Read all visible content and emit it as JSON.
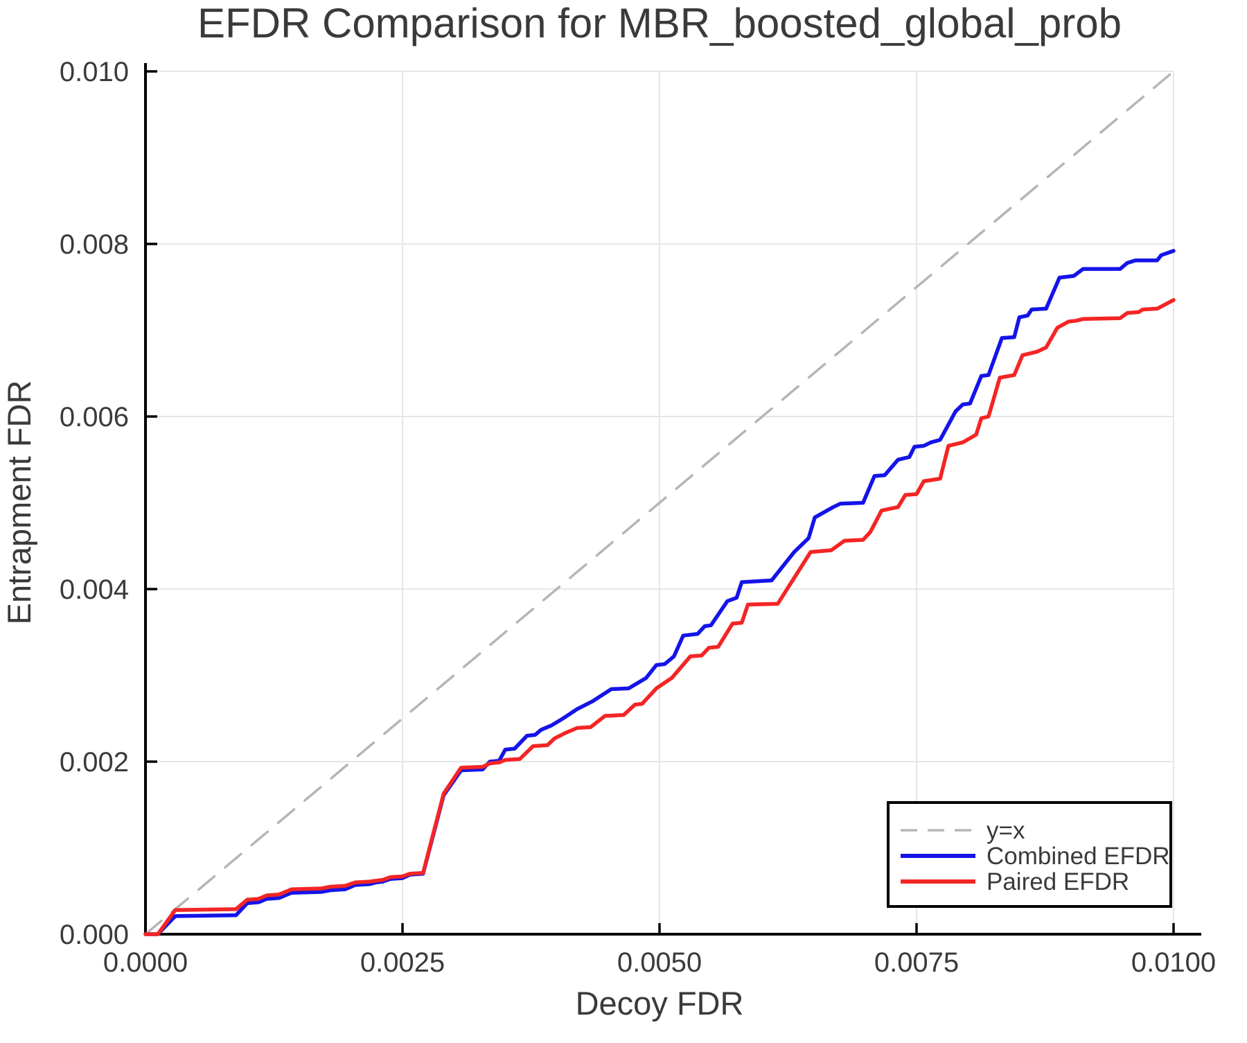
{
  "colors": {
    "background": "#ffffff",
    "text": "#3a3a3a",
    "spine": "#000000",
    "grid": "#e6e6e6",
    "identity": "#b5b5b5",
    "combined": "#1414e8",
    "paired": "#f42525",
    "legend_border": "#000000",
    "legend_fill": "#ffffff"
  },
  "chart_data": {
    "type": "line",
    "title": "EFDR Comparison for MBR_boosted_global_prob",
    "xlabel": "Decoy FDR",
    "ylabel": "Entrapment FDR",
    "xlim": [
      0.0,
      0.01
    ],
    "ylim": [
      0.0,
      0.01
    ],
    "grid": true,
    "legend_position": "lower right",
    "x_ticks": [
      {
        "v": 0.0,
        "label": "0.0000"
      },
      {
        "v": 0.0025,
        "label": "0.0025"
      },
      {
        "v": 0.005,
        "label": "0.0050"
      },
      {
        "v": 0.0075,
        "label": "0.0075"
      },
      {
        "v": 0.01,
        "label": "0.0100"
      }
    ],
    "y_ticks": [
      {
        "v": 0.0,
        "label": "0.000"
      },
      {
        "v": 0.002,
        "label": "0.002"
      },
      {
        "v": 0.004,
        "label": "0.004"
      },
      {
        "v": 0.006,
        "label": "0.006"
      },
      {
        "v": 0.008,
        "label": "0.008"
      },
      {
        "v": 0.01,
        "label": "0.010"
      }
    ],
    "series": [
      {
        "name": "y=x",
        "style": "dashed",
        "color_key": "identity",
        "points": [
          [
            0.0,
            0.0
          ],
          [
            0.01,
            0.01
          ]
        ]
      },
      {
        "name": "Combined EFDR",
        "style": "solid",
        "color_key": "combined",
        "points": [
          [
            0.0,
            0.0
          ],
          [
            0.00012,
            0.0
          ],
          [
            0.00029,
            0.00021
          ],
          [
            0.00088,
            0.00022
          ],
          [
            0.00099,
            0.00036
          ],
          [
            0.0011,
            0.00037
          ],
          [
            0.00118,
            0.00041
          ],
          [
            0.0013,
            0.00042
          ],
          [
            0.00142,
            0.00048
          ],
          [
            0.00171,
            0.00049
          ],
          [
            0.0018,
            0.00051
          ],
          [
            0.00194,
            0.00052
          ],
          [
            0.00204,
            0.00057
          ],
          [
            0.00218,
            0.00058
          ],
          [
            0.00224,
            0.0006
          ],
          [
            0.00231,
            0.00061
          ],
          [
            0.00238,
            0.00064
          ],
          [
            0.0025,
            0.00065
          ],
          [
            0.00257,
            0.00069
          ],
          [
            0.0027,
            0.0007
          ],
          [
            0.0029,
            0.00161
          ],
          [
            0.00307,
            0.0019
          ],
          [
            0.00328,
            0.00191
          ],
          [
            0.00335,
            0.002
          ],
          [
            0.00344,
            0.00201
          ],
          [
            0.0035,
            0.00214
          ],
          [
            0.00359,
            0.00215
          ],
          [
            0.00371,
            0.0023
          ],
          [
            0.00379,
            0.00231
          ],
          [
            0.00385,
            0.00237
          ],
          [
            0.00395,
            0.00242
          ],
          [
            0.00406,
            0.0025
          ],
          [
            0.0042,
            0.00261
          ],
          [
            0.00435,
            0.0027
          ],
          [
            0.00453,
            0.00284
          ],
          [
            0.0047,
            0.00285
          ],
          [
            0.00487,
            0.00297
          ],
          [
            0.00497,
            0.00312
          ],
          [
            0.00505,
            0.00313
          ],
          [
            0.00514,
            0.00322
          ],
          [
            0.00523,
            0.00346
          ],
          [
            0.00537,
            0.00348
          ],
          [
            0.00544,
            0.00357
          ],
          [
            0.0055,
            0.00358
          ],
          [
            0.00566,
            0.00386
          ],
          [
            0.00575,
            0.0039
          ],
          [
            0.0058,
            0.00408
          ],
          [
            0.00609,
            0.0041
          ],
          [
            0.00631,
            0.00443
          ],
          [
            0.00645,
            0.00459
          ],
          [
            0.00651,
            0.00483
          ],
          [
            0.00669,
            0.00495
          ],
          [
            0.00676,
            0.00499
          ],
          [
            0.00698,
            0.005
          ],
          [
            0.00709,
            0.00531
          ],
          [
            0.00719,
            0.00532
          ],
          [
            0.00732,
            0.0055
          ],
          [
            0.00743,
            0.00553
          ],
          [
            0.00748,
            0.00565
          ],
          [
            0.00757,
            0.00566
          ],
          [
            0.00764,
            0.0057
          ],
          [
            0.00773,
            0.00573
          ],
          [
            0.00788,
            0.00606
          ],
          [
            0.00795,
            0.00614
          ],
          [
            0.00802,
            0.00615
          ],
          [
            0.00813,
            0.00647
          ],
          [
            0.0082,
            0.00648
          ],
          [
            0.00833,
            0.00691
          ],
          [
            0.00845,
            0.00692
          ],
          [
            0.0085,
            0.00715
          ],
          [
            0.00858,
            0.00717
          ],
          [
            0.00862,
            0.00724
          ],
          [
            0.00876,
            0.00725
          ],
          [
            0.00889,
            0.00761
          ],
          [
            0.00903,
            0.00763
          ],
          [
            0.00912,
            0.00771
          ],
          [
            0.00948,
            0.00771
          ],
          [
            0.00955,
            0.00778
          ],
          [
            0.00963,
            0.00781
          ],
          [
            0.00984,
            0.00781
          ],
          [
            0.00988,
            0.00787
          ],
          [
            0.01,
            0.00792
          ]
        ]
      },
      {
        "name": "Paired EFDR",
        "style": "solid",
        "color_key": "paired",
        "points": [
          [
            0.0,
            0.0
          ],
          [
            0.00012,
            0.0
          ],
          [
            0.00029,
            0.00028
          ],
          [
            0.00088,
            0.00029
          ],
          [
            0.00099,
            0.0004
          ],
          [
            0.0011,
            0.00041
          ],
          [
            0.00118,
            0.00045
          ],
          [
            0.0013,
            0.00046
          ],
          [
            0.00142,
            0.00052
          ],
          [
            0.00171,
            0.00053
          ],
          [
            0.0018,
            0.00055
          ],
          [
            0.00194,
            0.00056
          ],
          [
            0.00204,
            0.0006
          ],
          [
            0.00218,
            0.00061
          ],
          [
            0.00224,
            0.00062
          ],
          [
            0.00231,
            0.00063
          ],
          [
            0.00238,
            0.00066
          ],
          [
            0.0025,
            0.00067
          ],
          [
            0.00257,
            0.0007
          ],
          [
            0.0027,
            0.00071
          ],
          [
            0.0029,
            0.00163
          ],
          [
            0.00307,
            0.00193
          ],
          [
            0.00328,
            0.00194
          ],
          [
            0.00335,
            0.00198
          ],
          [
            0.00344,
            0.00199
          ],
          [
            0.0035,
            0.00202
          ],
          [
            0.00364,
            0.00203
          ],
          [
            0.00377,
            0.00218
          ],
          [
            0.00391,
            0.00219
          ],
          [
            0.00398,
            0.00227
          ],
          [
            0.00408,
            0.00233
          ],
          [
            0.0042,
            0.00239
          ],
          [
            0.00433,
            0.0024
          ],
          [
            0.00447,
            0.00253
          ],
          [
            0.00465,
            0.00254
          ],
          [
            0.00476,
            0.00266
          ],
          [
            0.00483,
            0.00267
          ],
          [
            0.00497,
            0.00285
          ],
          [
            0.00512,
            0.00297
          ],
          [
            0.0053,
            0.00322
          ],
          [
            0.00541,
            0.00323
          ],
          [
            0.00548,
            0.00332
          ],
          [
            0.00557,
            0.00333
          ],
          [
            0.00571,
            0.0036
          ],
          [
            0.0058,
            0.00361
          ],
          [
            0.00586,
            0.00382
          ],
          [
            0.00615,
            0.00383
          ],
          [
            0.00647,
            0.00443
          ],
          [
            0.00667,
            0.00445
          ],
          [
            0.0068,
            0.00456
          ],
          [
            0.00698,
            0.00457
          ],
          [
            0.00705,
            0.00466
          ],
          [
            0.00716,
            0.00491
          ],
          [
            0.00732,
            0.00495
          ],
          [
            0.00739,
            0.00509
          ],
          [
            0.0075,
            0.0051
          ],
          [
            0.00757,
            0.00525
          ],
          [
            0.00773,
            0.00528
          ],
          [
            0.00781,
            0.00566
          ],
          [
            0.00795,
            0.0057
          ],
          [
            0.00808,
            0.00579
          ],
          [
            0.00813,
            0.00598
          ],
          [
            0.0082,
            0.006
          ],
          [
            0.00831,
            0.00645
          ],
          [
            0.00845,
            0.00648
          ],
          [
            0.00853,
            0.00671
          ],
          [
            0.00867,
            0.00675
          ],
          [
            0.00876,
            0.0068
          ],
          [
            0.00887,
            0.00703
          ],
          [
            0.00898,
            0.0071
          ],
          [
            0.00905,
            0.00711
          ],
          [
            0.00912,
            0.00713
          ],
          [
            0.00948,
            0.00714
          ],
          [
            0.00955,
            0.0072
          ],
          [
            0.00966,
            0.00721
          ],
          [
            0.0097,
            0.00724
          ],
          [
            0.00984,
            0.00725
          ],
          [
            0.01,
            0.00735
          ]
        ]
      }
    ],
    "legend": [
      {
        "label": "y=x"
      },
      {
        "label": "Combined EFDR"
      },
      {
        "label": "Paired EFDR"
      }
    ]
  }
}
